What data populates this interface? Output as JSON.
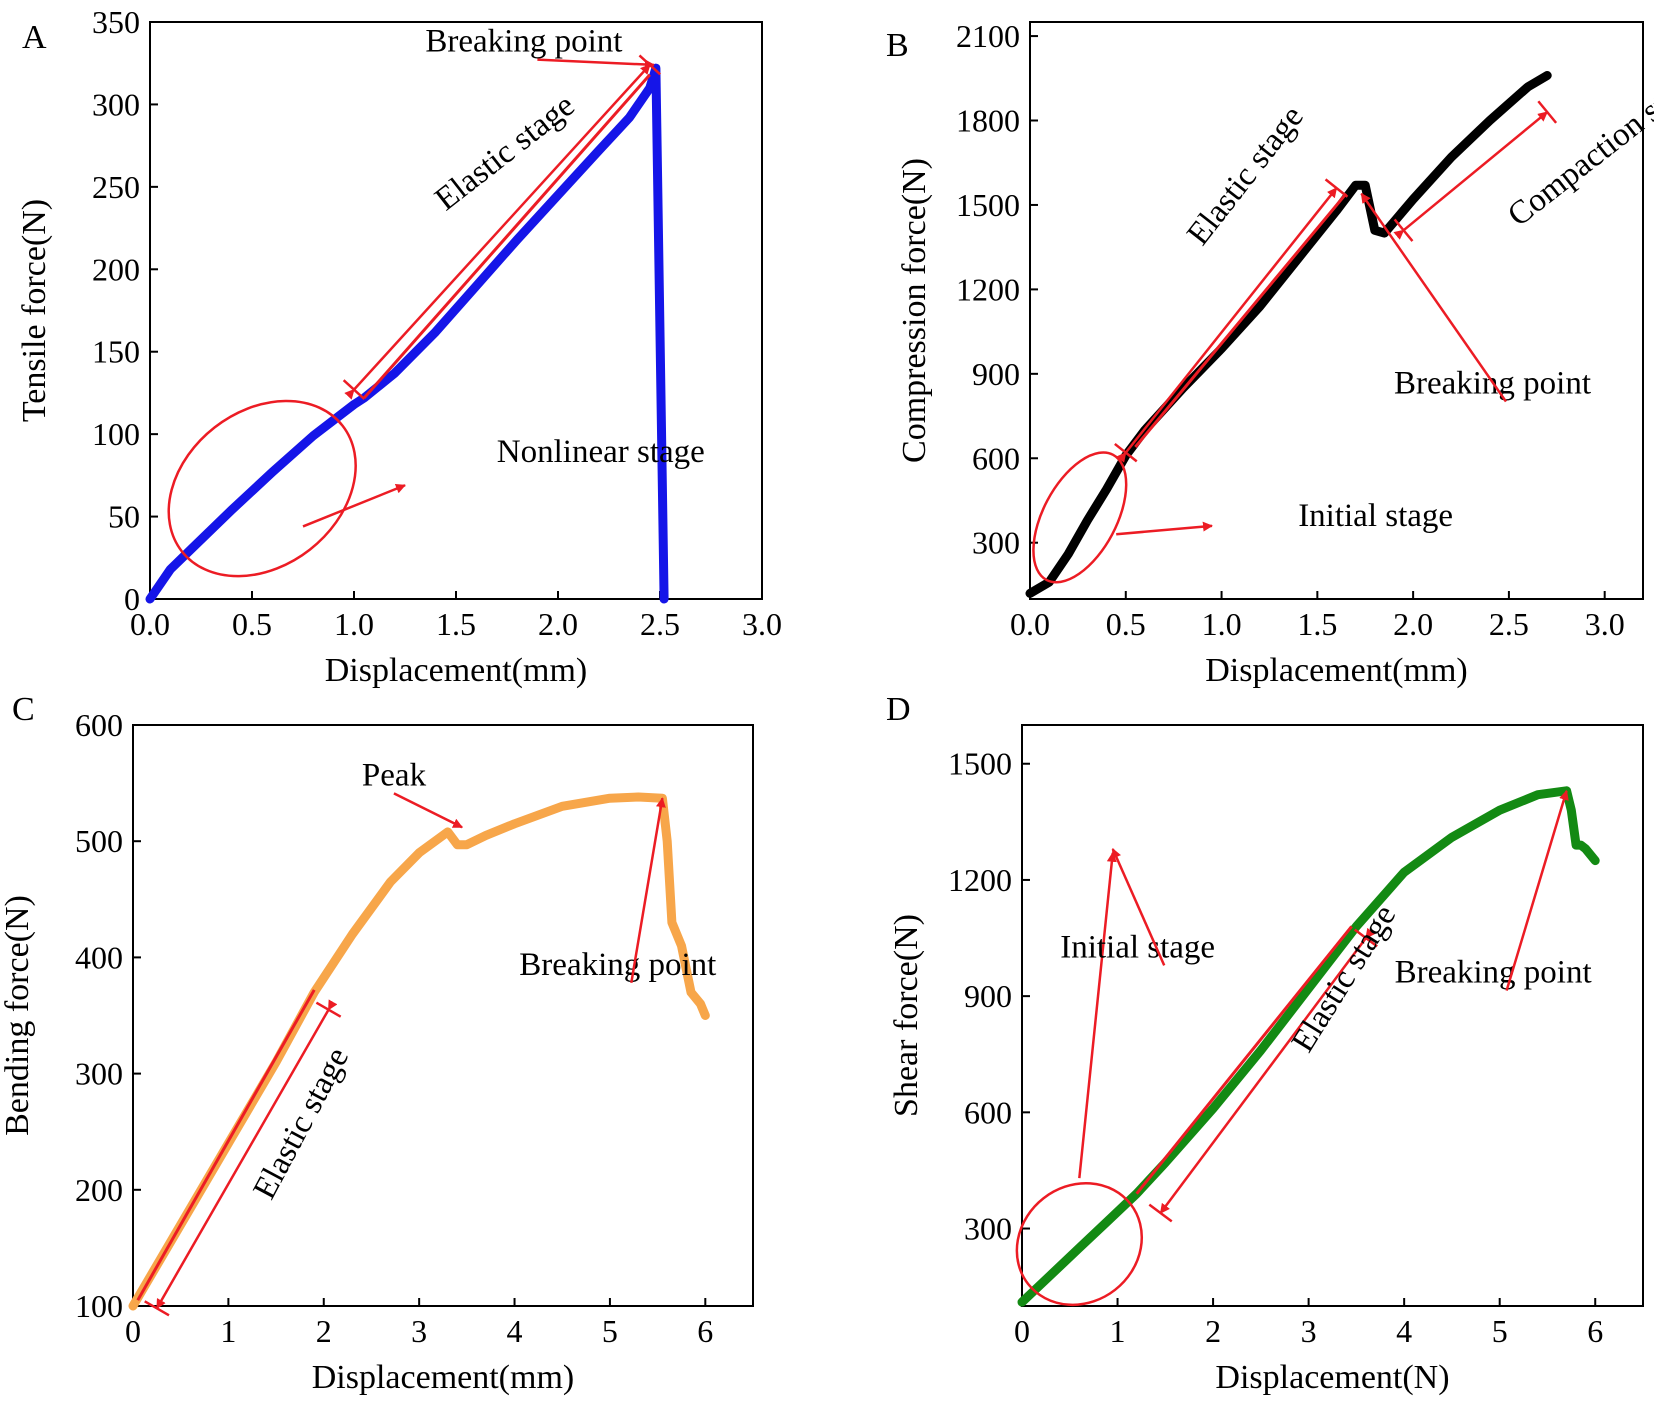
{
  "chart_data": [
    {
      "panel": "A",
      "type": "line",
      "color": "#1515e8",
      "line_width": 9,
      "xlabel": "Displacement(mm)",
      "ylabel": "Tensile force(N)",
      "xlim": [
        0,
        3.0
      ],
      "ylim": [
        0,
        350
      ],
      "xticks": [
        0.0,
        0.5,
        1.0,
        1.5,
        2.0,
        2.5,
        3.0
      ],
      "xtick_labels": [
        "0.0",
        "0.5",
        "1.0",
        "1.5",
        "2.0",
        "2.5",
        "3.0"
      ],
      "yticks": [
        0,
        50,
        100,
        150,
        200,
        250,
        300,
        350
      ],
      "ytick_labels": [
        "0",
        "50",
        "100",
        "150",
        "200",
        "250",
        "300",
        "350"
      ],
      "series": [
        {
          "name": "Tensile",
          "x": [
            0,
            0.1,
            0.2,
            0.4,
            0.6,
            0.8,
            1.0,
            1.05,
            1.2,
            1.4,
            1.6,
            1.8,
            2.0,
            2.2,
            2.35,
            2.45,
            2.48,
            2.52,
            2.52
          ],
          "y": [
            0,
            18,
            30,
            54,
            77,
            99,
            118,
            122,
            137,
            162,
            190,
            218,
            245,
            272,
            292,
            310,
            322,
            0,
            0
          ]
        }
      ],
      "annotations": [
        {
          "text": "Breaking point",
          "x": 1.35,
          "y": 332,
          "arrow_to": [
            2.47,
            324
          ],
          "angle": 0
        },
        {
          "text": "Elastic stage",
          "x": 1.45,
          "y": 235,
          "arrow_to": null,
          "angle": -38
        },
        {
          "text": "Nonlinear stage",
          "x": 1.7,
          "y": 83,
          "arrow_to": null,
          "angle": 0
        }
      ],
      "fit_line": {
        "x": [
          1.05,
          2.45
        ],
        "y": [
          122,
          318
        ]
      },
      "dimension_arrow": {
        "from": [
          1.0,
          127
        ],
        "to": [
          2.45,
          324
        ]
      },
      "ellipse": {
        "cx": 0.55,
        "cy": 67,
        "rx_data": 0.5,
        "ry_data": 47,
        "angle": -38
      },
      "pointer_arrow": {
        "from": [
          0.75,
          44
        ],
        "to": [
          1.25,
          69
        ]
      }
    },
    {
      "panel": "B",
      "type": "line",
      "color": "#000000",
      "line_width": 9,
      "xlabel": "Displacement(mm)",
      "ylabel": "Compression force(N)",
      "xlim": [
        0,
        3.2
      ],
      "ylim": [
        100,
        2150
      ],
      "xticks": [
        0.0,
        0.5,
        1.0,
        1.5,
        2.0,
        2.5,
        3.0
      ],
      "xtick_labels": [
        "0.0",
        "0.5",
        "1.0",
        "1.5",
        "2.0",
        "2.5",
        "3.0"
      ],
      "yticks": [
        300,
        600,
        900,
        1200,
        1500,
        1800,
        2100
      ],
      "ytick_labels": [
        "300",
        "600",
        "900",
        "1200",
        "1500",
        "1800",
        "2100"
      ],
      "series": [
        {
          "name": "Compression",
          "x": [
            0,
            0.1,
            0.2,
            0.3,
            0.4,
            0.5,
            0.6,
            0.8,
            1.0,
            1.2,
            1.4,
            1.6,
            1.7,
            1.75,
            1.8,
            1.85,
            1.9,
            2.0,
            2.2,
            2.4,
            2.6,
            2.7
          ],
          "y": [
            120,
            160,
            260,
            380,
            490,
            610,
            700,
            850,
            990,
            1140,
            1310,
            1480,
            1570,
            1570,
            1410,
            1400,
            1440,
            1520,
            1670,
            1800,
            1920,
            1960
          ]
        }
      ],
      "annotations": [
        {
          "text": "Elastic stage",
          "x": 0.9,
          "y": 1350,
          "arrow_to": null,
          "angle": -52
        },
        {
          "text": "Breaking point",
          "x": 1.9,
          "y": 830,
          "arrow_to": [
            1.73,
            1540
          ],
          "angle": 0
        },
        {
          "text": "Initial stage",
          "x": 1.4,
          "y": 360,
          "arrow_to": null,
          "angle": 0
        },
        {
          "text": "Compaction stage",
          "x": 2.55,
          "y": 1420,
          "arrow_to": null,
          "angle": -38
        }
      ],
      "fit_line": {
        "x": [
          0.55,
          1.65
        ],
        "y": [
          640,
          1540
        ]
      },
      "dimension_arrow": {
        "from": [
          0.5,
          620
        ],
        "to": [
          1.6,
          1560
        ]
      },
      "dimension_arrow_2": {
        "from": [
          1.95,
          1410
        ],
        "to": [
          2.7,
          1830
        ]
      },
      "ellipse": {
        "cx": 0.26,
        "cy": 390,
        "rx_data": 0.37,
        "ry_data": 130,
        "angle": -62
      },
      "pointer_arrow": {
        "from": [
          0.45,
          330
        ],
        "to": [
          0.95,
          360
        ]
      }
    },
    {
      "panel": "C",
      "type": "line",
      "color": "#f7a64a",
      "line_width": 9,
      "xlabel": "Displacement(mm)",
      "ylabel": "Bending force(N)",
      "xlim": [
        0,
        6.5
      ],
      "ylim": [
        100,
        600
      ],
      "xticks": [
        0,
        1,
        2,
        3,
        4,
        5,
        6
      ],
      "xtick_labels": [
        "0",
        "1",
        "2",
        "3",
        "4",
        "5",
        "6"
      ],
      "yticks": [
        100,
        200,
        300,
        400,
        500,
        600
      ],
      "ytick_labels": [
        "100",
        "200",
        "300",
        "400",
        "500",
        "600"
      ],
      "series": [
        {
          "name": "Bending",
          "x": [
            0,
            0.5,
            1.0,
            1.5,
            1.9,
            2.3,
            2.7,
            3.0,
            3.3,
            3.4,
            3.5,
            3.7,
            4.0,
            4.5,
            5.0,
            5.3,
            5.55,
            5.6,
            5.65,
            5.75,
            5.85,
            5.95,
            6.0
          ],
          "y": [
            100,
            170,
            240,
            310,
            370,
            420,
            465,
            490,
            508,
            497,
            497,
            505,
            515,
            530,
            537,
            538,
            537,
            500,
            430,
            410,
            370,
            360,
            350
          ]
        }
      ],
      "annotations": [
        {
          "text": "Peak",
          "x": 2.4,
          "y": 548,
          "arrow_to": [
            3.45,
            512
          ],
          "angle": 0
        },
        {
          "text": "Breaking point",
          "x": 4.05,
          "y": 385,
          "arrow_to": [
            5.55,
            537
          ],
          "angle": 0
        },
        {
          "text": "Elastic stage",
          "x": 1.45,
          "y": 190,
          "arrow_to": null,
          "angle": -62
        }
      ],
      "fit_line": {
        "x": [
          0.05,
          1.9
        ],
        "y": [
          105,
          372
        ]
      },
      "dimension_arrow": {
        "from": [
          2.05,
          355
        ],
        "to": [
          0.25,
          98
        ]
      }
    },
    {
      "panel": "D",
      "type": "line",
      "color": "#138a13",
      "line_width": 9,
      "xlabel": "Displacement(N)",
      "ylabel": "Shear force(N)",
      "xlim": [
        0,
        6.5
      ],
      "ylim": [
        100,
        1600
      ],
      "xticks": [
        0,
        1,
        2,
        3,
        4,
        5,
        6
      ],
      "xtick_labels": [
        "0",
        "1",
        "2",
        "3",
        "4",
        "5",
        "6"
      ],
      "yticks": [
        300,
        600,
        900,
        1200,
        1500
      ],
      "ytick_labels": [
        "300",
        "600",
        "900",
        "1200",
        "1500"
      ],
      "series": [
        {
          "name": "Shear",
          "x": [
            0,
            0.3,
            0.6,
            0.9,
            1.2,
            1.5,
            2.0,
            2.5,
            3.0,
            3.5,
            4.0,
            4.5,
            5.0,
            5.4,
            5.7,
            5.75,
            5.8,
            5.85,
            5.9,
            6.0
          ],
          "y": [
            110,
            180,
            250,
            320,
            390,
            470,
            610,
            760,
            920,
            1080,
            1220,
            1310,
            1380,
            1420,
            1430,
            1380,
            1290,
            1290,
            1280,
            1250
          ]
        }
      ],
      "annotations": [
        {
          "text": "Initial stage",
          "x": 0.4,
          "y": 1000,
          "arrow_to": [
            0.95,
            1280
          ],
          "angle": 0
        },
        {
          "text": "Breaking point",
          "x": 3.9,
          "y": 935,
          "arrow_to": [
            5.7,
            1430
          ],
          "angle": 0
        },
        {
          "text": "Elastic stage",
          "x": 3.0,
          "y": 750,
          "arrow_to": null,
          "angle": -58
        }
      ],
      "fit_line": {
        "x": [
          1.2,
          3.45
        ],
        "y": [
          390,
          1080
        ]
      },
      "dimension_arrow": {
        "from": [
          3.6,
          1050
        ],
        "to": [
          1.45,
          340
        ]
      },
      "ellipse": {
        "cx": 0.6,
        "cy": 260,
        "rx_data": 0.68,
        "ry_data": 150,
        "angle": -38
      },
      "pointer_arrow": {
        "from": [
          0.6,
          430
        ],
        "to": [
          0.95,
          1270
        ]
      }
    }
  ]
}
